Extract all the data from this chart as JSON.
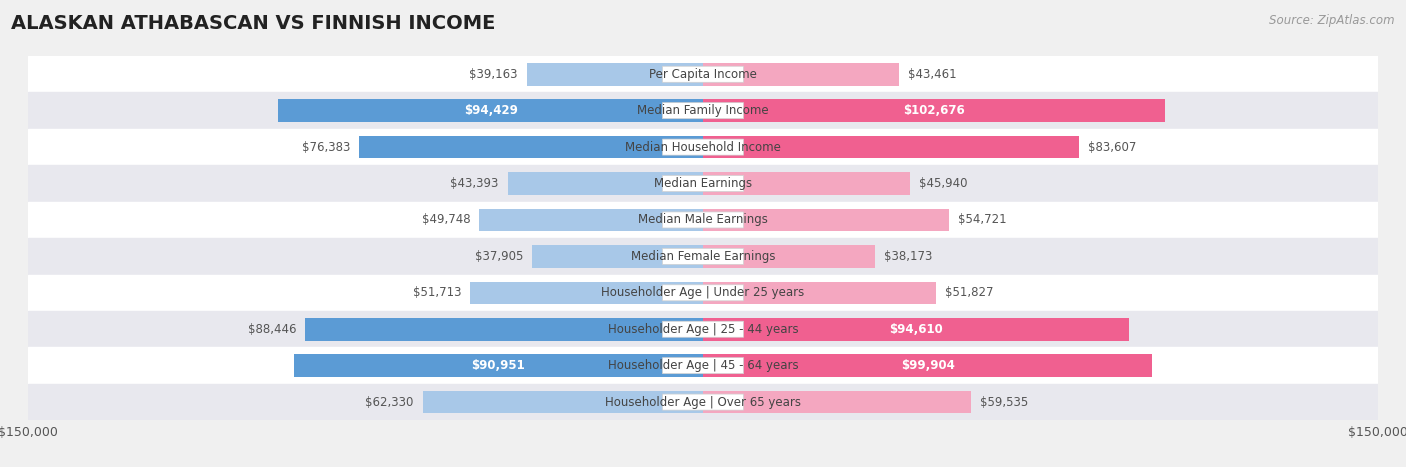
{
  "title": "ALASKAN ATHABASCAN VS FINNISH INCOME",
  "source": "Source: ZipAtlas.com",
  "categories": [
    "Per Capita Income",
    "Median Family Income",
    "Median Household Income",
    "Median Earnings",
    "Median Male Earnings",
    "Median Female Earnings",
    "Householder Age | Under 25 years",
    "Householder Age | 25 - 44 years",
    "Householder Age | 45 - 64 years",
    "Householder Age | Over 65 years"
  ],
  "alaskan_values": [
    39163,
    94429,
    76383,
    43393,
    49748,
    37905,
    51713,
    88446,
    90951,
    62330
  ],
  "finnish_values": [
    43461,
    102676,
    83607,
    45940,
    54721,
    38173,
    51827,
    94610,
    99904,
    59535
  ],
  "alaskan_labels": [
    "$39,163",
    "$94,429",
    "$76,383",
    "$43,393",
    "$49,748",
    "$37,905",
    "$51,713",
    "$88,446",
    "$90,951",
    "$62,330"
  ],
  "finnish_labels": [
    "$43,461",
    "$102,676",
    "$83,607",
    "$45,940",
    "$54,721",
    "$38,173",
    "$51,827",
    "$94,610",
    "$99,904",
    "$59,535"
  ],
  "alaskan_color_light": "#a8c8e8",
  "alaskan_color_dark": "#5b9bd5",
  "finnish_color_light": "#f4a7c0",
  "finnish_color_dark": "#f06090",
  "max_value": 150000,
  "background_color": "#f0f0f0",
  "row_colors": [
    "#ffffff",
    "#e8e8ee",
    "#ffffff",
    "#e8e8ee",
    "#ffffff",
    "#e8e8ee",
    "#ffffff",
    "#e8e8ee",
    "#ffffff",
    "#e8e8ee"
  ],
  "label_color_dark": "#555555",
  "title_fontsize": 14,
  "source_fontsize": 8.5,
  "bar_label_fontsize": 8.5,
  "category_fontsize": 8.5,
  "axis_label_fontsize": 9,
  "legend_fontsize": 9,
  "alaskan_white_label": [
    1,
    8
  ],
  "finnish_white_label": [
    1,
    7,
    8
  ],
  "alaskan_dark_bar": [
    1,
    2,
    7,
    8
  ],
  "finnish_dark_bar": [
    1,
    2,
    7,
    8
  ]
}
